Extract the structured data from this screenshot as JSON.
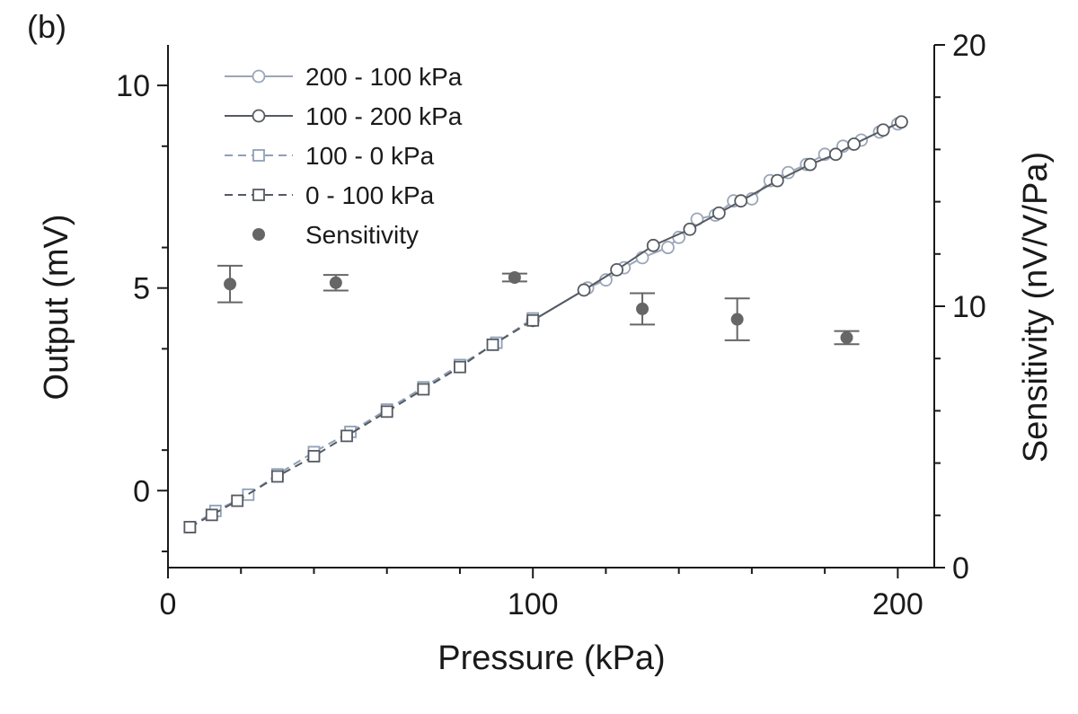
{
  "panel_label": "(b)",
  "colors": {
    "series_200_100": "#9aa6b8",
    "series_100_200": "#555a62",
    "series_100_0": "#8fa0b8",
    "series_0_100": "#555a62",
    "sensitivity": "#666666",
    "axis": "#1a1a1a"
  },
  "chart_data": {
    "type": "scatter",
    "xlabel": "Pressure (kPa)",
    "ylabel": "Output (mV)",
    "y2label": "Sensitivity (nV/V/Pa)",
    "xlim": [
      0,
      210
    ],
    "ylim": [
      -1.9,
      11
    ],
    "y2lim": [
      0,
      20
    ],
    "xticks": [
      0,
      100,
      200
    ],
    "yticks": [
      0,
      5,
      10
    ],
    "y2ticks": [
      0,
      10,
      20
    ],
    "xtick_labels": [
      "0",
      "100",
      "200"
    ],
    "ytick_labels": [
      "0",
      "5",
      "10"
    ],
    "y2tick_labels": [
      "0",
      "10",
      "20"
    ],
    "legend_position": "top-left",
    "grid": false,
    "series": [
      {
        "name": "200 - 100 kPa",
        "marker": "circle",
        "line": "solid",
        "axis": "left",
        "color_key": "series_200_100",
        "x": [
          100,
          115,
          120,
          125,
          130,
          137,
          140,
          145,
          150,
          155,
          160,
          165,
          170,
          175,
          180,
          185,
          190,
          195,
          200
        ],
        "y": [
          4.2,
          5.0,
          5.2,
          5.5,
          5.75,
          6.0,
          6.25,
          6.7,
          6.8,
          7.15,
          7.2,
          7.65,
          7.85,
          8.05,
          8.3,
          8.5,
          8.65,
          8.85,
          9.05
        ]
      },
      {
        "name": "100 - 200 kPa",
        "marker": "circle",
        "line": "solid",
        "axis": "left",
        "color_key": "series_100_200",
        "x": [
          100,
          114,
          123,
          133,
          143,
          151,
          157,
          167,
          176,
          183,
          188,
          196,
          201
        ],
        "y": [
          4.2,
          4.95,
          5.45,
          6.05,
          6.45,
          6.85,
          7.15,
          7.65,
          8.05,
          8.3,
          8.55,
          8.9,
          9.1
        ]
      },
      {
        "name": "100 - 0 kPa",
        "marker": "square",
        "line": "dashed",
        "axis": "left",
        "color_key": "series_100_0",
        "x": [
          6,
          13,
          22,
          30,
          40,
          50,
          60,
          70,
          80,
          90,
          100
        ],
        "y": [
          -0.9,
          -0.5,
          -0.1,
          0.4,
          0.95,
          1.45,
          2.0,
          2.55,
          3.1,
          3.65,
          4.25
        ]
      },
      {
        "name": "0 - 100 kPa",
        "marker": "square",
        "line": "dashed",
        "axis": "left",
        "color_key": "series_0_100",
        "x": [
          6,
          12,
          19,
          30,
          40,
          49,
          60,
          70,
          80,
          89,
          100
        ],
        "y": [
          -0.9,
          -0.6,
          -0.25,
          0.35,
          0.85,
          1.35,
          1.95,
          2.5,
          3.05,
          3.6,
          4.2
        ]
      },
      {
        "name": "Sensitivity",
        "marker": "filled-circle",
        "line": "none",
        "axis": "right",
        "color_key": "sensitivity",
        "x": [
          17,
          46,
          95,
          130,
          156,
          186
        ],
        "y": [
          10.85,
          10.9,
          11.1,
          9.9,
          9.5,
          8.8
        ],
        "error": [
          0.7,
          0.3,
          0.15,
          0.6,
          0.8,
          0.25
        ]
      }
    ]
  }
}
